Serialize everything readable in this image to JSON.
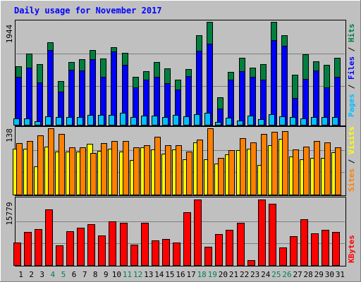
{
  "title": "Daily usage for November 2017",
  "chart_data": [
    {
      "type": "bar",
      "title": "Daily usage for November 2017",
      "series": [
        {
          "name": "Hits",
          "color": "#008040",
          "values": [
            1100,
            1340,
            1150,
            1560,
            820,
            1180,
            1240,
            1410,
            1250,
            1470,
            1360,
            910,
            1010,
            1180,
            1070,
            850,
            1050,
            1690,
            1944,
            520,
            1000,
            1260,
            1080,
            1150,
            1944,
            1690,
            940,
            1330,
            1200,
            1130,
            1270
          ]
        },
        {
          "name": "Files",
          "color": "#0000ff",
          "values": [
            900,
            1080,
            800,
            1410,
            620,
            1040,
            1020,
            1240,
            900,
            1390,
            1130,
            700,
            850,
            900,
            790,
            660,
            920,
            1400,
            1530,
            300,
            850,
            1010,
            900,
            850,
            1600,
            1490,
            510,
            870,
            1020,
            700,
            900
          ]
        },
        {
          "name": "Pages",
          "color": "#00c0ff",
          "values": [
            120,
            120,
            60,
            160,
            150,
            140,
            150,
            180,
            180,
            180,
            220,
            150,
            170,
            170,
            150,
            180,
            160,
            200,
            220,
            50,
            130,
            80,
            170,
            110,
            200,
            160,
            150,
            120,
            150,
            150,
            140
          ]
        }
      ],
      "ylabel": "Pages / Files / Hits",
      "ymax_label": "1944",
      "ylim": [
        0,
        1944
      ]
    },
    {
      "type": "bar",
      "series": [
        {
          "name": "Visits",
          "color": "#ffff00",
          "values": [
            95,
            96,
            58,
            100,
            90,
            89,
            89,
            106,
            91,
            95,
            89,
            72,
            99,
            94,
            85,
            94,
            74,
            109,
            74,
            64,
            84,
            93,
            95,
            61,
            103,
            116,
            79,
            74,
            77,
            76,
            88
          ]
        },
        {
          "name": "Sites",
          "color": "#ff8000",
          "values": [
            107,
            111,
            124,
            138,
            126,
            99,
            99,
            87,
            107,
            111,
            112,
            99,
            103,
            120,
            103,
            103,
            89,
            115,
            138,
            76,
            93,
            118,
            109,
            126,
            130,
            132,
            94,
            100,
            112,
            108,
            98
          ]
        }
      ],
      "ylabel": "Sites / Visits",
      "ymax_label": "138",
      "ylim": [
        0,
        138
      ]
    },
    {
      "type": "bar",
      "series": [
        {
          "name": "KBytes",
          "color": "#ff0000",
          "values": [
            5400,
            8000,
            8600,
            13400,
            4800,
            8200,
            9000,
            9900,
            7100,
            10600,
            10200,
            4900,
            10100,
            5900,
            6300,
            5400,
            12800,
            15779,
            4400,
            7500,
            8400,
            10100,
            1200,
            15779,
            14700,
            4300,
            6900,
            11000,
            7600,
            8400,
            7900
          ]
        }
      ],
      "ylabel": "KBytes",
      "ymax_label": "15779",
      "ylim": [
        0,
        15779
      ]
    }
  ],
  "x_labels": [
    "1",
    "2",
    "3",
    "4",
    "5",
    "6",
    "7",
    "8",
    "9",
    "10",
    "11",
    "12",
    "13",
    "14",
    "15",
    "16",
    "17",
    "18",
    "19",
    "20",
    "21",
    "22",
    "23",
    "24",
    "25",
    "26",
    "27",
    "28",
    "29",
    "30",
    "31"
  ],
  "weekend_days": [
    4,
    5,
    11,
    12,
    18,
    19,
    25,
    26
  ],
  "colors": {
    "background": "#c0c0c0",
    "title": "#0000ff",
    "weekday_label": "#000000",
    "weekend_label": "#00805c",
    "gridline": "#808080"
  }
}
